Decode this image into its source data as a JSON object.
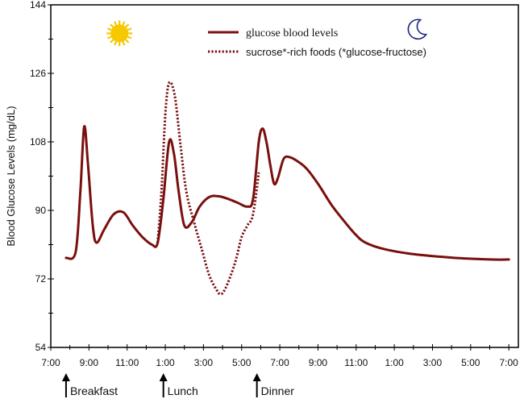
{
  "chart_data": {
    "type": "line",
    "title": "",
    "xlabel": "",
    "ylabel": "Blood Glucose Levels (mg/dL)",
    "ylim": [
      54,
      144
    ],
    "xlim": [
      7,
      31.5
    ],
    "y_ticks": [
      54,
      72,
      90,
      108,
      126,
      144
    ],
    "x_tick_hours": [
      7,
      9,
      11,
      13,
      15,
      17,
      19,
      21,
      23,
      25,
      27,
      29,
      31
    ],
    "x_tick_labels": [
      "7:00",
      "9:00",
      "11:00",
      "1:00",
      "3:00",
      "5:00",
      "7:00",
      "9:00",
      "11:00",
      "1:00",
      "3:00",
      "5:00",
      "7:00"
    ],
    "grid": false,
    "series": [
      {
        "name": "glucose blood levels",
        "style": "solid",
        "color": "#7a0f0f",
        "points": [
          [
            7.8,
            77.5
          ],
          [
            8.3,
            79
          ],
          [
            8.55,
            95
          ],
          [
            8.75,
            112
          ],
          [
            8.95,
            102
          ],
          [
            9.2,
            86
          ],
          [
            9.4,
            81.5
          ],
          [
            9.8,
            85
          ],
          [
            10.3,
            89
          ],
          [
            10.8,
            89.5
          ],
          [
            11.3,
            86
          ],
          [
            11.8,
            83
          ],
          [
            12.3,
            81
          ],
          [
            12.6,
            81.5
          ],
          [
            12.9,
            93
          ],
          [
            13.2,
            108
          ],
          [
            13.45,
            105
          ],
          [
            13.7,
            95
          ],
          [
            14.0,
            86
          ],
          [
            14.4,
            87
          ],
          [
            14.8,
            91
          ],
          [
            15.3,
            93.5
          ],
          [
            15.8,
            93.7
          ],
          [
            16.3,
            93
          ],
          [
            16.8,
            92
          ],
          [
            17.3,
            91
          ],
          [
            17.6,
            93
          ],
          [
            17.9,
            108
          ],
          [
            18.1,
            111.5
          ],
          [
            18.3,
            108
          ],
          [
            18.5,
            102
          ],
          [
            18.7,
            97
          ],
          [
            18.9,
            98.5
          ],
          [
            19.2,
            103.5
          ],
          [
            19.5,
            104
          ],
          [
            19.9,
            103
          ],
          [
            20.4,
            101
          ],
          [
            21.0,
            97
          ],
          [
            21.7,
            91.5
          ],
          [
            22.4,
            87
          ],
          [
            23.0,
            83.5
          ],
          [
            23.5,
            81.5
          ],
          [
            24.5,
            79.8
          ],
          [
            26.0,
            78.5
          ],
          [
            28.0,
            77.6
          ],
          [
            30.0,
            77.1
          ],
          [
            31.0,
            77.1
          ]
        ]
      },
      {
        "name": "sucrose*-rich foods (*glucose-fructose)",
        "style": "dotted",
        "color": "#7a0f0f",
        "points": [
          [
            12.6,
            81.5
          ],
          [
            12.8,
            95
          ],
          [
            13.0,
            115
          ],
          [
            13.2,
            123.5
          ],
          [
            13.5,
            120
          ],
          [
            13.8,
            107
          ],
          [
            14.1,
            95
          ],
          [
            14.5,
            87
          ],
          [
            14.9,
            80
          ],
          [
            15.3,
            73
          ],
          [
            15.7,
            69
          ],
          [
            15.9,
            68
          ],
          [
            16.1,
            69
          ],
          [
            16.4,
            72.5
          ],
          [
            16.7,
            77
          ],
          [
            17.0,
            83
          ],
          [
            17.3,
            86
          ],
          [
            17.6,
            89
          ],
          [
            17.9,
            100
          ]
        ]
      }
    ],
    "legend": {
      "position": "top-center",
      "entries": [
        "glucose blood levels",
        "sucrose*-rich foods (*glucose-fructose)"
      ]
    },
    "annotations": {
      "meals": [
        {
          "label": "Breakfast",
          "hour": 7.8
        },
        {
          "label": "Lunch",
          "hour": 12.9
        },
        {
          "label": "Dinner",
          "hour": 17.8
        }
      ],
      "icons": [
        {
          "name": "sun-icon",
          "hour": 10.6,
          "value": 136.5,
          "color": "#f5c800"
        },
        {
          "name": "moon-icon",
          "hour": 26.2,
          "value": 137.5,
          "color": "#1a237e"
        }
      ]
    }
  }
}
